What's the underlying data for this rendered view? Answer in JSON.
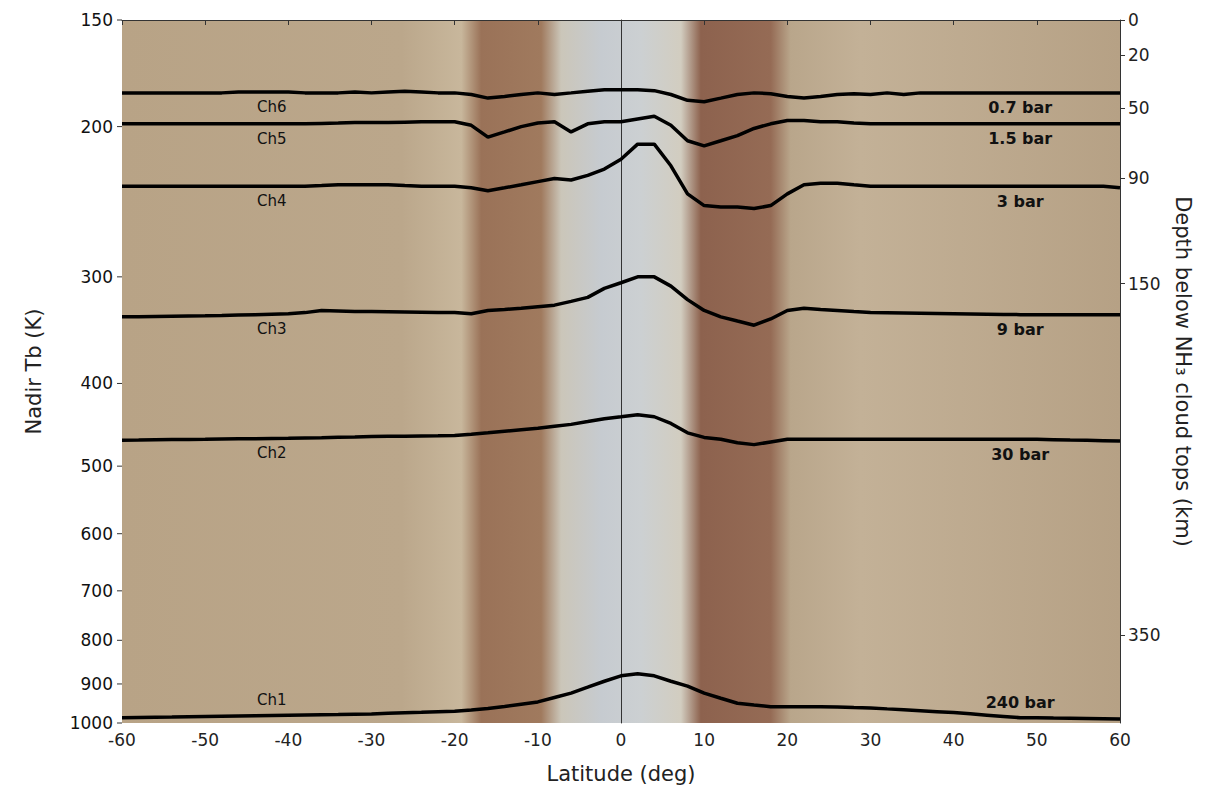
{
  "chart_data": {
    "type": "line",
    "x_label": "Latitude (deg)",
    "y_label": "Nadir Tb (K)",
    "y2_label": "Depth below NH₃ cloud tops (km)",
    "x": [
      -60,
      -58,
      -56,
      -54,
      -52,
      -50,
      -48,
      -46,
      -44,
      -42,
      -40,
      -38,
      -36,
      -34,
      -32,
      -30,
      -28,
      -26,
      -24,
      -22,
      -20,
      -18,
      -16,
      -14,
      -12,
      -10,
      -8,
      -6,
      -4,
      -2,
      0,
      2,
      4,
      6,
      8,
      10,
      12,
      14,
      16,
      18,
      20,
      22,
      24,
      26,
      28,
      30,
      32,
      34,
      36,
      38,
      40,
      42,
      44,
      46,
      48,
      50,
      52,
      54,
      56,
      58,
      60
    ],
    "series": [
      {
        "name": "Ch6",
        "annotation": "0.7 bar",
        "color": "#000000",
        "values": [
          182.6,
          182.6,
          182.6,
          182.6,
          182.6,
          182.6,
          182.6,
          182.2,
          182.2,
          182.2,
          182.2,
          182.6,
          182.6,
          182.6,
          182.2,
          182.6,
          182.2,
          181.8,
          182.2,
          182.6,
          182.6,
          183.4,
          185.2,
          184.4,
          183.4,
          182.6,
          183.4,
          182.6,
          181.8,
          181.1,
          181.1,
          181.1,
          181.5,
          183.4,
          186.3,
          187,
          185.2,
          183.4,
          182.6,
          183,
          184.4,
          185.2,
          184.4,
          183.4,
          183,
          183.4,
          182.6,
          183.4,
          182.6,
          182.6,
          182.6,
          182.6,
          182.6,
          182.6,
          182.6,
          182.6,
          182.6,
          182.6,
          182.6,
          182.6,
          182.6
        ]
      },
      {
        "name": "Ch5",
        "annotation": "1.5 bar",
        "color": "#000000",
        "values": [
          198.5,
          198.5,
          198.5,
          198.5,
          198.5,
          198.5,
          198.5,
          198.5,
          198.5,
          198.5,
          198.5,
          198.5,
          198.3,
          198.1,
          197.8,
          197.8,
          197.8,
          197.6,
          197.4,
          197.4,
          197.4,
          199.3,
          205.8,
          202.9,
          200,
          198.1,
          197.4,
          202.9,
          198.5,
          197.4,
          197.4,
          195.9,
          194.5,
          199.3,
          207.8,
          210.7,
          207.8,
          204.9,
          201,
          198.5,
          196.7,
          196.7,
          197.4,
          197.4,
          198.1,
          198.5,
          198.5,
          198.5,
          198.5,
          198.5,
          198.5,
          198.5,
          198.5,
          198.5,
          198.5,
          198.5,
          198.5,
          198.5,
          198.5,
          198.5,
          198.5
        ]
      },
      {
        "name": "Ch4",
        "annotation": "3 bar",
        "color": "#000000",
        "values": [
          234.9,
          234.9,
          234.9,
          234.9,
          234.9,
          234.9,
          234.9,
          234.9,
          234.9,
          234.9,
          234.9,
          234.9,
          234.5,
          234,
          234,
          234,
          234,
          234.5,
          234.9,
          234.9,
          234.9,
          235.9,
          237.8,
          235.9,
          234,
          232,
          230.1,
          231,
          228.1,
          224.3,
          218.4,
          209.7,
          209.7,
          222.3,
          239.8,
          247.5,
          248.5,
          248.5,
          249.5,
          247.5,
          239.8,
          234,
          233,
          233,
          234,
          234.9,
          234.9,
          234.9,
          234.9,
          234.9,
          234.9,
          234.9,
          234.9,
          234.9,
          234.9,
          234.9,
          234.9,
          234.9,
          234.9,
          234.9,
          235.9
        ]
      },
      {
        "name": "Ch3",
        "annotation": "9 bar",
        "color": "#000000",
        "values": [
          334.2,
          334,
          333.8,
          333.6,
          333.4,
          333.3,
          333,
          332.6,
          332.2,
          331.8,
          331.4,
          330.4,
          328.5,
          329,
          329.5,
          329.5,
          329.7,
          329.9,
          330.1,
          330.3,
          330.4,
          331.4,
          328.5,
          327.6,
          326.6,
          325.2,
          323.8,
          320.5,
          317.1,
          309.5,
          304.8,
          300,
          300,
          307.6,
          319,
          328.5,
          334.2,
          338,
          341.8,
          336.1,
          328.5,
          326.6,
          327.6,
          328.5,
          329.5,
          330.4,
          330.6,
          330.8,
          331,
          331.2,
          331.4,
          331.6,
          331.8,
          332,
          332.2,
          332.3,
          332.3,
          332.3,
          332.3,
          332.3,
          332.3
        ]
      },
      {
        "name": "Ch2",
        "annotation": "30 bar",
        "color": "#000000",
        "values": [
          466.1,
          465.9,
          465.6,
          465.4,
          465.2,
          465,
          464.7,
          464.5,
          464.3,
          464,
          463.8,
          463.4,
          463,
          462.5,
          462.1,
          461.6,
          461.4,
          461.2,
          460.9,
          460.7,
          460.4,
          458.7,
          457,
          455.1,
          453.2,
          451.3,
          449,
          446.7,
          443.3,
          439.9,
          437.6,
          435.3,
          437.6,
          445.6,
          457,
          462.7,
          465,
          469.5,
          471.8,
          468.4,
          465,
          465,
          465,
          465,
          465,
          465,
          465,
          465,
          465,
          465,
          465,
          465,
          465,
          465,
          465,
          465,
          465.5,
          466,
          466.4,
          466.8,
          467.2
        ]
      },
      {
        "name": "Ch1",
        "annotation": "240 bar",
        "color": "#000000",
        "values": [
          986,
          985.3,
          984.6,
          984,
          983.3,
          982.6,
          981.9,
          981.2,
          980.5,
          979.8,
          979.1,
          978.4,
          977.7,
          977.1,
          976.4,
          975.7,
          974.3,
          972.9,
          971.6,
          970.2,
          968.8,
          965.4,
          961.9,
          956.2,
          950.4,
          944.7,
          933.5,
          922.4,
          907.9,
          893.4,
          880.5,
          875.7,
          880.5,
          893.4,
          905.2,
          922.4,
          935.3,
          948.2,
          952.5,
          956.8,
          956.8,
          956.8,
          956.8,
          957.9,
          959.1,
          960.2,
          962.6,
          965,
          967.4,
          969.8,
          972.2,
          975.6,
          979,
          982.4,
          985.8,
          986,
          986.7,
          987.3,
          988,
          988.7,
          989.4
        ]
      }
    ],
    "xlim": [
      -60,
      60
    ],
    "xticks": [
      -60,
      -50,
      -40,
      -30,
      -20,
      -10,
      0,
      10,
      20,
      30,
      40,
      50,
      60
    ],
    "ylim": [
      150,
      1000
    ],
    "yticks": [
      150,
      200,
      300,
      400,
      500,
      600,
      700,
      800,
      900,
      1000
    ],
    "y2lim": [
      0,
      400
    ],
    "y2ticks": [
      0,
      20,
      50,
      90,
      150,
      350
    ],
    "log": "y",
    "grid": false
  }
}
